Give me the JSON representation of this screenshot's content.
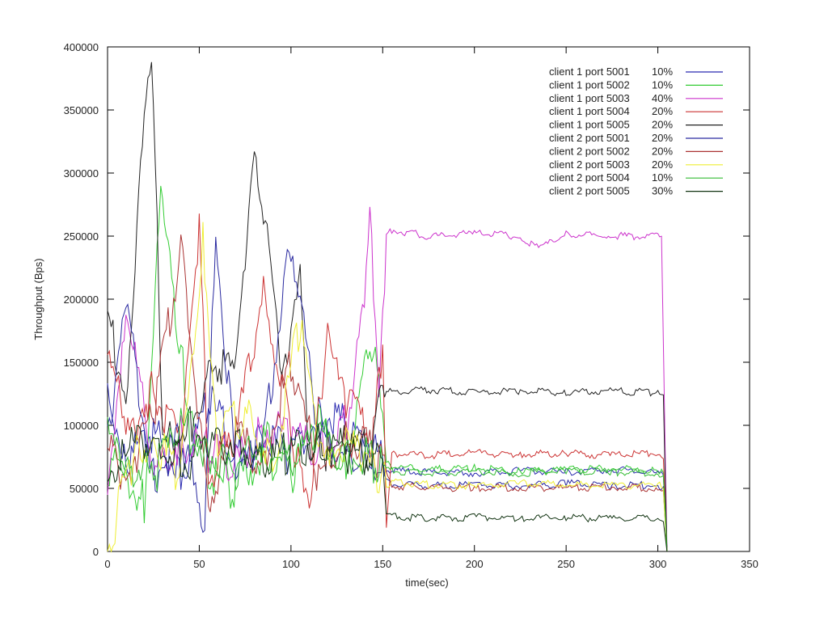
{
  "chart_data": {
    "type": "line",
    "title": "",
    "xlabel": "time(sec)",
    "ylabel": "Throughput (Bps)",
    "xlim": [
      0,
      350
    ],
    "ylim": [
      0,
      400000
    ],
    "xticks": [
      "0",
      "50",
      "100",
      "150",
      "200",
      "250",
      "300",
      "350"
    ],
    "yticks": [
      "0",
      "50000",
      "100000",
      "150000",
      "200000",
      "250000",
      "300000",
      "350000",
      "400000"
    ],
    "grid": false,
    "legend_position": "top-right",
    "series": [
      {
        "name": "client 1 port 5001",
        "share": "10%",
        "color": "#2a2ab0",
        "x": [
          0,
          10,
          25,
          40,
          55,
          70,
          85,
          100,
          115,
          130,
          145,
          152,
          155,
          175,
          200,
          225,
          250,
          275,
          300,
          303,
          305
        ],
        "y": [
          130000,
          70000,
          95000,
          60000,
          120000,
          80000,
          90000,
          75000,
          110000,
          100000,
          80000,
          65000,
          64000,
          63000,
          62000,
          64000,
          63000,
          65000,
          62000,
          60000,
          0
        ]
      },
      {
        "name": "client 1 port 5002",
        "share": "10%",
        "color": "#33cc33",
        "x": [
          0,
          8,
          20,
          29,
          40,
          55,
          70,
          85,
          100,
          115,
          130,
          145,
          152,
          155,
          175,
          200,
          225,
          250,
          275,
          300,
          303,
          305
        ],
        "y": [
          70000,
          60000,
          40000,
          280000,
          150000,
          60000,
          50000,
          80000,
          60000,
          100000,
          70000,
          170000,
          70000,
          67000,
          65000,
          66000,
          64000,
          65000,
          66000,
          64000,
          62000,
          0
        ]
      },
      {
        "name": "client 1 port 5003",
        "share": "40%",
        "color": "#cc33cc",
        "x": [
          0,
          10,
          25,
          40,
          55,
          70,
          85,
          100,
          115,
          130,
          140,
          143,
          148,
          152,
          155,
          175,
          200,
          225,
          235,
          250,
          275,
          300,
          302,
          305
        ],
        "y": [
          40000,
          200000,
          60000,
          90000,
          80000,
          70000,
          100000,
          90000,
          80000,
          100000,
          190000,
          260000,
          140000,
          250000,
          255000,
          250000,
          252000,
          250000,
          240000,
          252000,
          250000,
          250000,
          248000,
          0
        ]
      },
      {
        "name": "client 1 port 5004",
        "share": "20%",
        "color": "#cc3333",
        "x": [
          0,
          10,
          25,
          40,
          50,
          55,
          70,
          85,
          100,
          110,
          120,
          130,
          145,
          150,
          152,
          155,
          175,
          200,
          225,
          250,
          275,
          300,
          303,
          305
        ],
        "y": [
          170000,
          90000,
          130000,
          80000,
          255000,
          60000,
          90000,
          210000,
          100000,
          20000,
          190000,
          120000,
          90000,
          170000,
          20000,
          78000,
          76000,
          78000,
          77000,
          78000,
          76000,
          78000,
          76000,
          0
        ]
      },
      {
        "name": "client 1 port 5005",
        "share": "20%",
        "color": "#222222",
        "x": [
          0,
          10,
          21,
          24,
          27,
          30,
          45,
          60,
          70,
          80,
          86,
          95,
          105,
          110,
          120,
          130,
          145,
          150,
          152,
          155,
          175,
          200,
          225,
          250,
          275,
          300,
          303,
          305
        ],
        "y": [
          190000,
          120000,
          365000,
          370000,
          270000,
          80000,
          100000,
          150000,
          140000,
          328000,
          265000,
          130000,
          230000,
          70000,
          80000,
          90000,
          80000,
          135000,
          128000,
          127000,
          128000,
          126000,
          127000,
          126000,
          127000,
          126000,
          125000,
          0
        ]
      },
      {
        "name": "client 2 port 5001",
        "share": "20%",
        "color": "#2a2aa0",
        "x": [
          0,
          10,
          25,
          40,
          53,
          59,
          70,
          85,
          100,
          115,
          130,
          145,
          152,
          155,
          175,
          200,
          225,
          250,
          275,
          300,
          303,
          305
        ],
        "y": [
          100000,
          190000,
          60000,
          90000,
          15000,
          255000,
          60000,
          90000,
          245000,
          90000,
          80000,
          70000,
          55000,
          54000,
          52000,
          53000,
          52000,
          54000,
          52000,
          53000,
          50000,
          0
        ]
      },
      {
        "name": "client 2 port 5002",
        "share": "20%",
        "color": "#aa3333",
        "x": [
          0,
          10,
          25,
          40,
          55,
          70,
          85,
          100,
          115,
          130,
          145,
          152,
          155,
          175,
          200,
          225,
          250,
          275,
          300,
          303,
          305
        ],
        "y": [
          80000,
          60000,
          110000,
          240000,
          40000,
          90000,
          70000,
          150000,
          60000,
          90000,
          80000,
          60000,
          52000,
          51000,
          50000,
          51000,
          50000,
          51000,
          50000,
          48000,
          0
        ]
      },
      {
        "name": "client 2 port 5003",
        "share": "20%",
        "color": "#eeee33",
        "x": [
          0,
          5,
          15,
          25,
          40,
          52,
          60,
          75,
          90,
          105,
          115,
          125,
          140,
          150,
          152,
          155,
          175,
          200,
          225,
          250,
          275,
          300,
          303,
          305
        ],
        "y": [
          0,
          30000,
          80000,
          90000,
          60000,
          245000,
          90000,
          110000,
          70000,
          180000,
          80000,
          90000,
          70000,
          60000,
          52000,
          55000,
          53000,
          52000,
          54000,
          53000,
          52000,
          53000,
          50000,
          0
        ]
      },
      {
        "name": "client 2 port 5004",
        "share": "10%",
        "color": "#33bb33",
        "x": [
          0,
          10,
          25,
          40,
          55,
          70,
          85,
          100,
          115,
          130,
          145,
          152,
          155,
          175,
          200,
          225,
          250,
          275,
          300,
          303,
          305
        ],
        "y": [
          90000,
          70000,
          60000,
          100000,
          80000,
          60000,
          90000,
          70000,
          90000,
          80000,
          70000,
          65000,
          64000,
          62000,
          63000,
          62000,
          64000,
          63000,
          62000,
          60000,
          0
        ]
      },
      {
        "name": "client 2 port 5005",
        "share": "30%",
        "color": "#113311",
        "x": [
          0,
          10,
          25,
          40,
          55,
          70,
          85,
          100,
          115,
          130,
          145,
          150,
          152,
          155,
          175,
          200,
          225,
          250,
          275,
          300,
          303,
          305
        ],
        "y": [
          60000,
          80000,
          90000,
          70000,
          80000,
          90000,
          70000,
          80000,
          90000,
          80000,
          70000,
          75000,
          30000,
          28000,
          26000,
          27000,
          26000,
          27000,
          26000,
          27000,
          25000,
          0
        ]
      }
    ]
  }
}
